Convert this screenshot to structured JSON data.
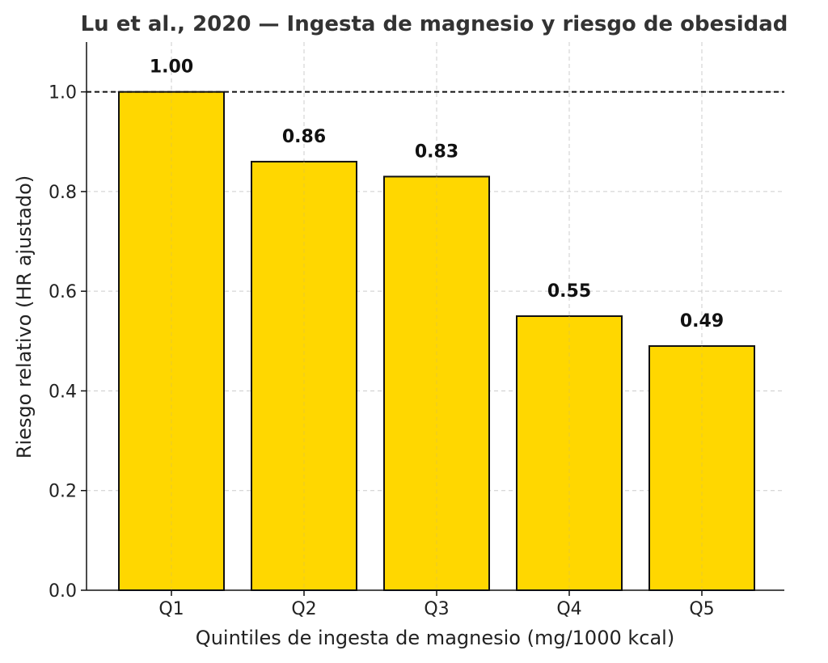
{
  "chart_data": {
    "type": "bar",
    "title": "Lu et al., 2020 — Ingesta de magnesio y riesgo de obesidad",
    "xlabel": "Quintiles de ingesta de magnesio (mg/1000 kcal)",
    "ylabel": "Riesgo relativo (HR ajustado)",
    "categories": [
      "Q1",
      "Q2",
      "Q3",
      "Q4",
      "Q5"
    ],
    "values": [
      1.0,
      0.86,
      0.83,
      0.55,
      0.49
    ],
    "value_labels": [
      "1.00",
      "0.86",
      "0.83",
      "0.55",
      "0.49"
    ],
    "ylim": [
      0,
      1.1
    ],
    "yticks": [
      0.0,
      0.2,
      0.4,
      0.6,
      0.8,
      1.0
    ],
    "ytick_labels": [
      "0.0",
      "0.2",
      "0.4",
      "0.6",
      "0.8",
      "1.0"
    ],
    "reference_line": 1.0,
    "grid": true,
    "colors": {
      "bar_fill": "#FFD700",
      "bar_stroke": "#111111",
      "grid": "#cccccc",
      "reference": "#111111"
    }
  }
}
